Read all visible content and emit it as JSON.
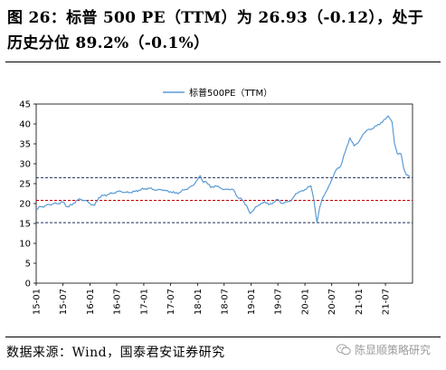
{
  "figure": {
    "title_line1": "图 26：标普 500 PE（TTM）为 26.93（-0.12），处于",
    "title_line2": "历史分位 89.2%（-0.1%）",
    "source": "数据来源：Wind，国泰君安证券研究",
    "watermark": "陈显顺策略研究",
    "watermark_icon": "wechat-icon"
  },
  "colors": {
    "series": "#5b9bd5",
    "mean_line": "#c00000",
    "band_line": "#1f2d5a",
    "axis": "#000000"
  },
  "chart_data": {
    "type": "line",
    "title": "",
    "xlabel": "",
    "ylabel": "",
    "ylim": [
      0,
      45
    ],
    "yticks": [
      0,
      5,
      10,
      15,
      20,
      25,
      30,
      35,
      40,
      45
    ],
    "xticks": [
      "15-01",
      "15-07",
      "16-01",
      "16-07",
      "17-01",
      "17-07",
      "18-01",
      "18-07",
      "19-01",
      "19-07",
      "20-01",
      "20-07",
      "21-01",
      "21-07"
    ],
    "x_start": "2015-01",
    "x_end": "2021-12",
    "legend": {
      "placement": "top-center",
      "entries": [
        "标普500PE（TTM）"
      ]
    },
    "grid": false,
    "series": [
      {
        "name": "标普500PE（TTM）",
        "points": [
          [
            "2015-01-01",
            18.4
          ],
          [
            "2015-02-01",
            19.2
          ],
          [
            "2015-03-01",
            19.4
          ],
          [
            "2015-04-01",
            19.7
          ],
          [
            "2015-05-01",
            20.0
          ],
          [
            "2015-06-01",
            20.0
          ],
          [
            "2015-07-01",
            20.4
          ],
          [
            "2015-08-01",
            19.2
          ],
          [
            "2015-09-01",
            19.6
          ],
          [
            "2015-10-01",
            20.8
          ],
          [
            "2015-11-01",
            21.0
          ],
          [
            "2015-12-01",
            20.8
          ],
          [
            "2016-01-01",
            20.0
          ],
          [
            "2016-02-01",
            19.5
          ],
          [
            "2016-03-01",
            21.5
          ],
          [
            "2016-04-01",
            22.0
          ],
          [
            "2016-05-01",
            22.3
          ],
          [
            "2016-06-01",
            22.5
          ],
          [
            "2016-07-01",
            23.0
          ],
          [
            "2016-08-01",
            23.0
          ],
          [
            "2016-09-01",
            22.8
          ],
          [
            "2016-10-01",
            22.8
          ],
          [
            "2016-11-01",
            23.0
          ],
          [
            "2016-12-01",
            23.4
          ],
          [
            "2017-01-01",
            23.6
          ],
          [
            "2017-02-01",
            23.9
          ],
          [
            "2017-03-01",
            23.6
          ],
          [
            "2017-04-01",
            23.4
          ],
          [
            "2017-05-01",
            23.5
          ],
          [
            "2017-06-01",
            23.2
          ],
          [
            "2017-07-01",
            23.0
          ],
          [
            "2017-08-01",
            22.6
          ],
          [
            "2017-09-01",
            22.8
          ],
          [
            "2017-10-01",
            23.4
          ],
          [
            "2017-11-01",
            23.9
          ],
          [
            "2017-12-01",
            24.5
          ],
          [
            "2018-01-01",
            26.0
          ],
          [
            "2018-01-20",
            27.0
          ],
          [
            "2018-02-10",
            25.3
          ],
          [
            "2018-03-01",
            25.5
          ],
          [
            "2018-04-01",
            24.0
          ],
          [
            "2018-05-01",
            24.5
          ],
          [
            "2018-06-01",
            24.0
          ],
          [
            "2018-07-01",
            23.5
          ],
          [
            "2018-08-01",
            23.6
          ],
          [
            "2018-09-01",
            23.5
          ],
          [
            "2018-10-01",
            21.6
          ],
          [
            "2018-11-01",
            20.9
          ],
          [
            "2018-12-01",
            19.5
          ],
          [
            "2018-12-24",
            17.5
          ],
          [
            "2019-01-15",
            18.2
          ],
          [
            "2019-02-01",
            19.2
          ],
          [
            "2019-03-01",
            19.7
          ],
          [
            "2019-04-01",
            20.5
          ],
          [
            "2019-05-01",
            19.7
          ],
          [
            "2019-06-01",
            20.3
          ],
          [
            "2019-07-01",
            21.0
          ],
          [
            "2019-08-01",
            20.0
          ],
          [
            "2019-09-01",
            20.4
          ],
          [
            "2019-10-01",
            20.8
          ],
          [
            "2019-11-01",
            22.5
          ],
          [
            "2019-12-01",
            23.0
          ],
          [
            "2020-01-01",
            23.5
          ],
          [
            "2020-02-10",
            24.5
          ],
          [
            "2020-03-01",
            21.0
          ],
          [
            "2020-03-23",
            15.2
          ],
          [
            "2020-04-10",
            19.0
          ],
          [
            "2020-05-01",
            21.5
          ],
          [
            "2020-06-01",
            23.5
          ],
          [
            "2020-07-01",
            26.0
          ],
          [
            "2020-08-01",
            28.5
          ],
          [
            "2020-09-01",
            29.5
          ],
          [
            "2020-10-01",
            33.0
          ],
          [
            "2020-11-01",
            36.5
          ],
          [
            "2020-12-01",
            34.5
          ],
          [
            "2021-01-01",
            35.5
          ],
          [
            "2021-02-01",
            37.5
          ],
          [
            "2021-03-01",
            38.5
          ],
          [
            "2021-04-01",
            38.8
          ],
          [
            "2021-05-01",
            39.5
          ],
          [
            "2021-06-01",
            40.3
          ],
          [
            "2021-07-01",
            41.2
          ],
          [
            "2021-07-20",
            42.0
          ],
          [
            "2021-08-15",
            40.5
          ],
          [
            "2021-09-01",
            35.0
          ],
          [
            "2021-09-20",
            32.5
          ],
          [
            "2021-10-15",
            32.5
          ],
          [
            "2021-11-01",
            29.0
          ],
          [
            "2021-11-20",
            27.2
          ],
          [
            "2021-12-15",
            26.9
          ]
        ]
      }
    ],
    "reference_lines": [
      {
        "style": "dashed",
        "color_key": "band_line",
        "y": 26.5
      },
      {
        "style": "dashed",
        "color_key": "mean_line",
        "y": 20.8
      },
      {
        "style": "dashed",
        "color_key": "band_line",
        "y": 15.2
      }
    ]
  }
}
